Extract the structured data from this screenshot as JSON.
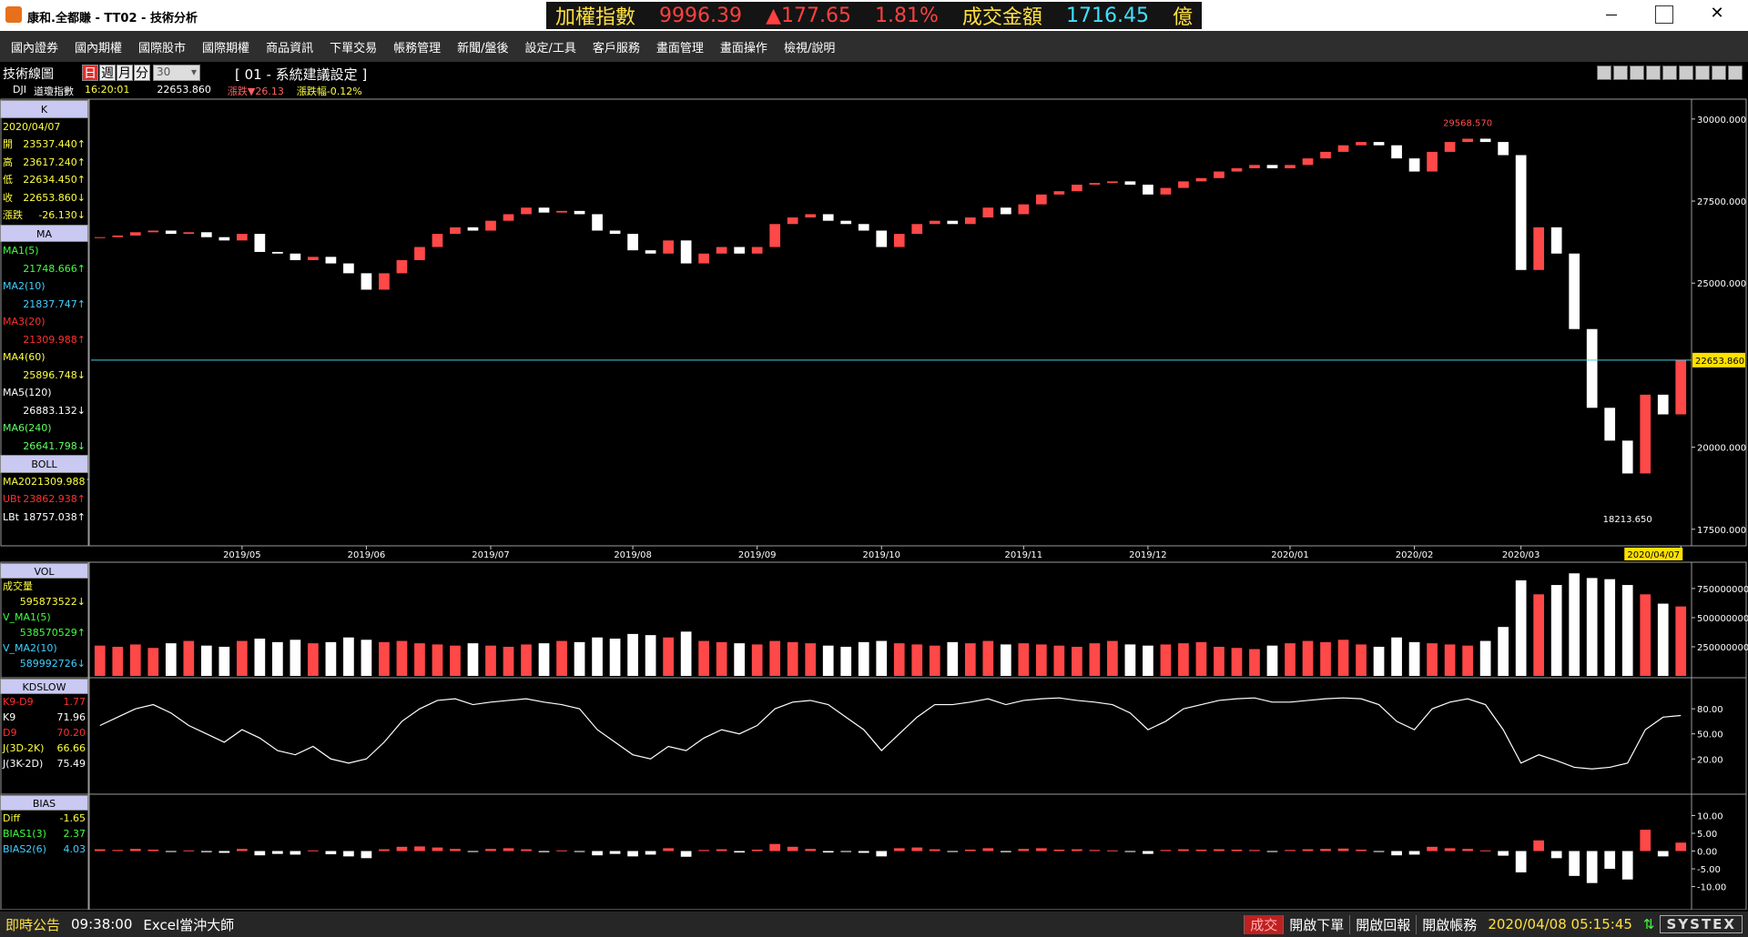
{
  "window": {
    "title": "康和.全都賺 - TT02 - 技術分析"
  },
  "ticker": {
    "name": "加權指數",
    "price": "9996.39",
    "change": "▲177.65",
    "percent": "1.81%",
    "turnover_label": "成交金額",
    "turnover": "1716.45",
    "unit": "億"
  },
  "menu": [
    "國內證券",
    "國內期權",
    "國際股市",
    "國際期權",
    "商品資訊",
    "下單交易",
    "帳務管理",
    "新聞/盤後",
    "設定/工具",
    "客戶服務",
    "畫面管理",
    "畫面操作",
    "檢視/說明"
  ],
  "toolbar": {
    "title": "技術線圖",
    "periods": [
      "日",
      "週",
      "月",
      "分"
    ],
    "count": "30",
    "setting": "[ 01 - 系統建議設定 ]",
    "symbol": "DJI",
    "symbol_name": "道瓊指數",
    "time": "16:20:01",
    "last": "22653.860",
    "change": "漲跌▼26.13",
    "change_pct": "漲跌幅-0.12%"
  },
  "panels": [
    {
      "type": "candlestick",
      "up_color": "#ff4848",
      "down_color": "#ffffff",
      "legend": [
        {
          "header": "K",
          "rows": [
            {
              "label": "2020/04/07",
              "color": "#ffff40"
            },
            {
              "label": "開",
              "value": "23537.440↑",
              "color": "#ffff40"
            },
            {
              "label": "高",
              "value": "23617.240↑",
              "color": "#ffff40"
            },
            {
              "label": "低",
              "value": "22634.450↑",
              "color": "#ffff40"
            },
            {
              "label": "收",
              "value": "22653.860↓",
              "color": "#ffff40"
            },
            {
              "label": "漲跌",
              "value": "-26.130↓",
              "color": "#ffff40"
            }
          ]
        },
        {
          "header": "MA",
          "stacked": true,
          "rows": [
            {
              "label": "MA1(5)",
              "value": "21748.666↑",
              "color": "#40ff40"
            },
            {
              "label": "MA2(10)",
              "value": "21837.747↑",
              "color": "#40d0ff"
            },
            {
              "label": "MA3(20)",
              "value": "21309.988↑",
              "color": "#ff3030"
            },
            {
              "label": "MA4(60)",
              "value": "25896.748↓",
              "color": "#ffff40"
            },
            {
              "label": "MA5(120)",
              "value": "26883.132↓",
              "color": "#ffffff"
            },
            {
              "label": "MA6(240)",
              "value": "26641.798↓",
              "color": "#60ff60"
            }
          ]
        },
        {
          "header": "BOLL",
          "rows": [
            {
              "label": "MA20",
              "value": "21309.988↑",
              "color": "#ffff40"
            },
            {
              "label": "UBt",
              "value": "23862.938↑",
              "color": "#ff3030"
            },
            {
              "label": "LBt",
              "value": "18757.038↑",
              "color": "#ffffff"
            }
          ]
        }
      ],
      "ylim": [
        17050,
        30550
      ],
      "yticks": [
        {
          "value": 17500,
          "label": "17500.000"
        },
        {
          "value": 20000,
          "label": "20000.000"
        },
        {
          "value": 25000,
          "label": "25000.000"
        },
        {
          "value": 27500,
          "label": "27500.000"
        },
        {
          "value": 30000,
          "label": "30000.000"
        }
      ],
      "current": {
        "value": 22653.86,
        "label": "22653.860"
      },
      "high_label": "29568.570",
      "low_label": "18213.650",
      "categories": [
        null,
        null,
        null,
        null,
        null,
        null,
        null,
        null,
        "2019/05",
        null,
        null,
        null,
        null,
        null,
        null,
        "2019/06",
        null,
        null,
        null,
        null,
        null,
        null,
        "2019/07",
        null,
        null,
        null,
        null,
        null,
        null,
        null,
        "2019/08",
        null,
        null,
        null,
        null,
        null,
        null,
        "2019/09",
        null,
        null,
        null,
        null,
        null,
        null,
        "2019/10",
        null,
        null,
        null,
        null,
        null,
        null,
        null,
        "2019/11",
        null,
        null,
        null,
        null,
        null,
        null,
        "2019/12",
        null,
        null,
        null,
        null,
        null,
        null,
        null,
        "2020/01",
        null,
        null,
        null,
        null,
        null,
        null,
        "2020/02",
        null,
        null,
        null,
        null,
        null,
        "2020/03",
        null,
        null,
        null,
        null,
        null,
        null,
        null,
        null,
        "2020/04/07"
      ],
      "values": [
        26400,
        26450,
        26550,
        26600,
        26500,
        26550,
        26400,
        26300,
        26500,
        25950,
        25900,
        25700,
        25800,
        25600,
        25300,
        24800,
        25300,
        25700,
        26100,
        26500,
        26700,
        26600,
        26900,
        27100,
        27300,
        27150,
        27200,
        27100,
        26600,
        26500,
        26000,
        25900,
        26300,
        25600,
        25900,
        26100,
        25900,
        26100,
        26800,
        27000,
        27100,
        26900,
        26800,
        26600,
        26100,
        26500,
        26800,
        26900,
        26800,
        27000,
        27300,
        27100,
        27400,
        27700,
        27800,
        28000,
        28050,
        28100,
        28000,
        27700,
        27900,
        28100,
        28200,
        28400,
        28500,
        28600,
        28500,
        28600,
        28800,
        29000,
        29200,
        29300,
        29200,
        28800,
        28400,
        29000,
        29300,
        29400,
        29300,
        28900,
        25400,
        26700,
        25900,
        23600,
        21200,
        20200,
        19200,
        21600,
        21000,
        22653.86
      ]
    },
    {
      "type": "volume",
      "legend": [
        {
          "header": "VOL",
          "stacked": true,
          "rows": [
            {
              "label": "成交量",
              "value": "595873522↓",
              "color": "#ffff40"
            },
            {
              "label": "V_MA1(5)",
              "value": "538570529↑",
              "color": "#40ff40"
            },
            {
              "label": "V_MA2(10)",
              "value": "589992726↓",
              "color": "#40d0ff"
            }
          ]
        }
      ],
      "ylim": [
        0,
        960000000
      ],
      "yticks": [
        250000000,
        500000000,
        750000000
      ],
      "values": [
        260000000,
        250000000,
        270000000,
        240000000,
        280000000,
        300000000,
        260000000,
        250000000,
        300000000,
        320000000,
        290000000,
        310000000,
        280000000,
        290000000,
        330000000,
        310000000,
        290000000,
        300000000,
        280000000,
        270000000,
        260000000,
        280000000,
        260000000,
        250000000,
        270000000,
        280000000,
        300000000,
        290000000,
        330000000,
        320000000,
        360000000,
        350000000,
        330000000,
        380000000,
        300000000,
        290000000,
        280000000,
        270000000,
        300000000,
        290000000,
        280000000,
        260000000,
        250000000,
        290000000,
        300000000,
        280000000,
        270000000,
        260000000,
        290000000,
        280000000,
        300000000,
        270000000,
        280000000,
        270000000,
        260000000,
        250000000,
        280000000,
        300000000,
        270000000,
        260000000,
        270000000,
        280000000,
        290000000,
        250000000,
        240000000,
        230000000,
        260000000,
        280000000,
        300000000,
        290000000,
        310000000,
        270000000,
        250000000,
        330000000,
        290000000,
        280000000,
        270000000,
        260000000,
        300000000,
        420000000,
        820000000,
        700000000,
        780000000,
        880000000,
        840000000,
        830000000,
        780000000,
        700000000,
        620000000,
        595873522
      ]
    },
    {
      "type": "line",
      "legend": [
        {
          "header": "KDSLOW",
          "rows": [
            {
              "label": "K9-D9",
              "value": "1.77",
              "color": "#ff3030"
            },
            {
              "label": "K9",
              "value": "71.96",
              "color": "#ffffff"
            },
            {
              "label": "D9",
              "value": "70.20",
              "color": "#ff3030"
            },
            {
              "label": "J(3D-2K)",
              "value": "66.66",
              "color": "#ffff40"
            },
            {
              "label": "J(3K-2D)",
              "value": "75.49",
              "color": "#ffffff"
            }
          ]
        }
      ],
      "ylim": [
        -20,
        115
      ],
      "yticks": [
        {
          "value": 20,
          "label": "20.00"
        },
        {
          "value": 50,
          "label": "50.00"
        },
        {
          "value": 80,
          "label": "80.00"
        }
      ],
      "series": [
        {
          "name": "K9",
          "color": "#ffffff",
          "values": [
            60,
            70,
            80,
            85,
            75,
            60,
            50,
            40,
            55,
            45,
            30,
            25,
            35,
            20,
            15,
            20,
            40,
            65,
            80,
            90,
            92,
            85,
            88,
            90,
            92,
            88,
            85,
            80,
            55,
            40,
            25,
            20,
            35,
            30,
            45,
            55,
            50,
            60,
            80,
            88,
            90,
            85,
            70,
            55,
            30,
            50,
            70,
            85,
            85,
            88,
            92,
            85,
            90,
            92,
            93,
            90,
            88,
            85,
            75,
            55,
            65,
            80,
            85,
            90,
            92,
            93,
            88,
            88,
            90,
            92,
            93,
            92,
            85,
            65,
            55,
            80,
            88,
            92,
            85,
            55,
            15,
            25,
            18,
            10,
            8,
            10,
            15,
            55,
            70,
            71.96
          ]
        }
      ]
    },
    {
      "type": "bar",
      "up_color": "#ff4848",
      "down_color": "#ffffff",
      "legend": [
        {
          "header": "BIAS",
          "rows": [
            {
              "label": "Diff",
              "value": "-1.65",
              "color": "#ffff40"
            },
            {
              "label": "BIAS1(3)",
              "value": "2.37",
              "color": "#40ff40"
            },
            {
              "label": "BIAS2(6)",
              "value": "4.03",
              "color": "#40d0ff"
            }
          ]
        }
      ],
      "ylim": [
        -16,
        15.5
      ],
      "yticks": [
        {
          "value": -10,
          "label": "-10.00"
        },
        {
          "value": -5,
          "label": "-5.00"
        },
        {
          "value": 0,
          "label": "0.00"
        },
        {
          "value": 5,
          "label": "5.00"
        },
        {
          "value": 10,
          "label": "10.00"
        }
      ],
      "values": [
        0.5,
        0.3,
        0.6,
        0.4,
        -0.2,
        0.2,
        -0.3,
        -0.5,
        0.6,
        -1.2,
        -0.8,
        -1.0,
        0.2,
        -0.9,
        -1.5,
        -2.0,
        0.5,
        1.2,
        1.3,
        1.0,
        0.6,
        -0.2,
        0.6,
        0.8,
        0.5,
        -0.3,
        0.2,
        -0.1,
        -1.2,
        -0.8,
        -1.5,
        -1.0,
        0.8,
        -1.6,
        0.3,
        0.5,
        -0.4,
        0.4,
        2.0,
        1.2,
        0.6,
        -0.4,
        -0.2,
        -0.5,
        -1.5,
        0.8,
        1.0,
        0.5,
        -0.2,
        0.4,
        0.8,
        -0.3,
        0.6,
        0.8,
        0.4,
        0.5,
        0.3,
        0.2,
        -0.2,
        -0.8,
        0.3,
        0.5,
        0.4,
        0.5,
        0.4,
        0.3,
        -0.2,
        0.3,
        0.5,
        0.6,
        0.7,
        0.4,
        -0.2,
        -1.2,
        -1.0,
        1.2,
        0.8,
        0.6,
        0.2,
        -1.3,
        -6.0,
        3.0,
        -2.0,
        -7.0,
        -9.0,
        -5.0,
        -8.0,
        6.0,
        -1.5,
        2.37
      ]
    }
  ],
  "status": {
    "notice": "即時公告",
    "time": "09:38:00",
    "tool": "Excel當沖大師",
    "buttons": [
      "成交",
      "開啟下單",
      "開啟回報",
      "開啟帳務"
    ],
    "datetime": "2020/04/08 05:15:45",
    "brand": "SYSTEX"
  }
}
